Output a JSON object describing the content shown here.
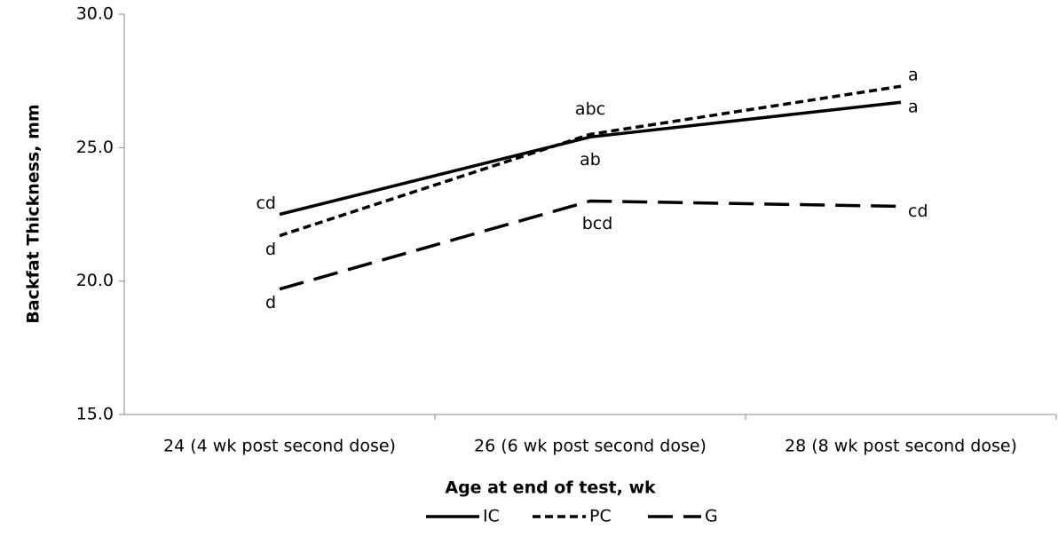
{
  "chart_data": {
    "type": "line",
    "x_label": "Age at end of test, wk",
    "y_label": "Backfat Thickness, mm",
    "categories": [
      "24 (4 wk post second dose)",
      "26 (6 wk post second dose)",
      "28 (8 wk post second dose)"
    ],
    "series": [
      {
        "name": "IC",
        "color": "#000000",
        "dash": "solid",
        "values": [
          22.5,
          25.4,
          26.7
        ],
        "letters": [
          "cd",
          "ab",
          "a"
        ]
      },
      {
        "name": "PC",
        "color": "#000000",
        "dash": "short",
        "values": [
          21.7,
          25.5,
          27.3
        ],
        "letters": [
          "d",
          "abc",
          "a"
        ]
      },
      {
        "name": "G",
        "color": "#000000",
        "dash": "long",
        "values": [
          19.7,
          23.0,
          22.8
        ],
        "letters": [
          "d",
          "bcd",
          "cd"
        ]
      }
    ],
    "ylim": [
      15,
      30
    ],
    "yticks": [
      {
        "value": 15,
        "label": "15.0"
      },
      {
        "value": 20,
        "label": "20.0"
      },
      {
        "value": 25,
        "label": "25.0"
      },
      {
        "value": 30,
        "label": "30.0"
      }
    ],
    "grid": false,
    "legend": "bottom"
  }
}
